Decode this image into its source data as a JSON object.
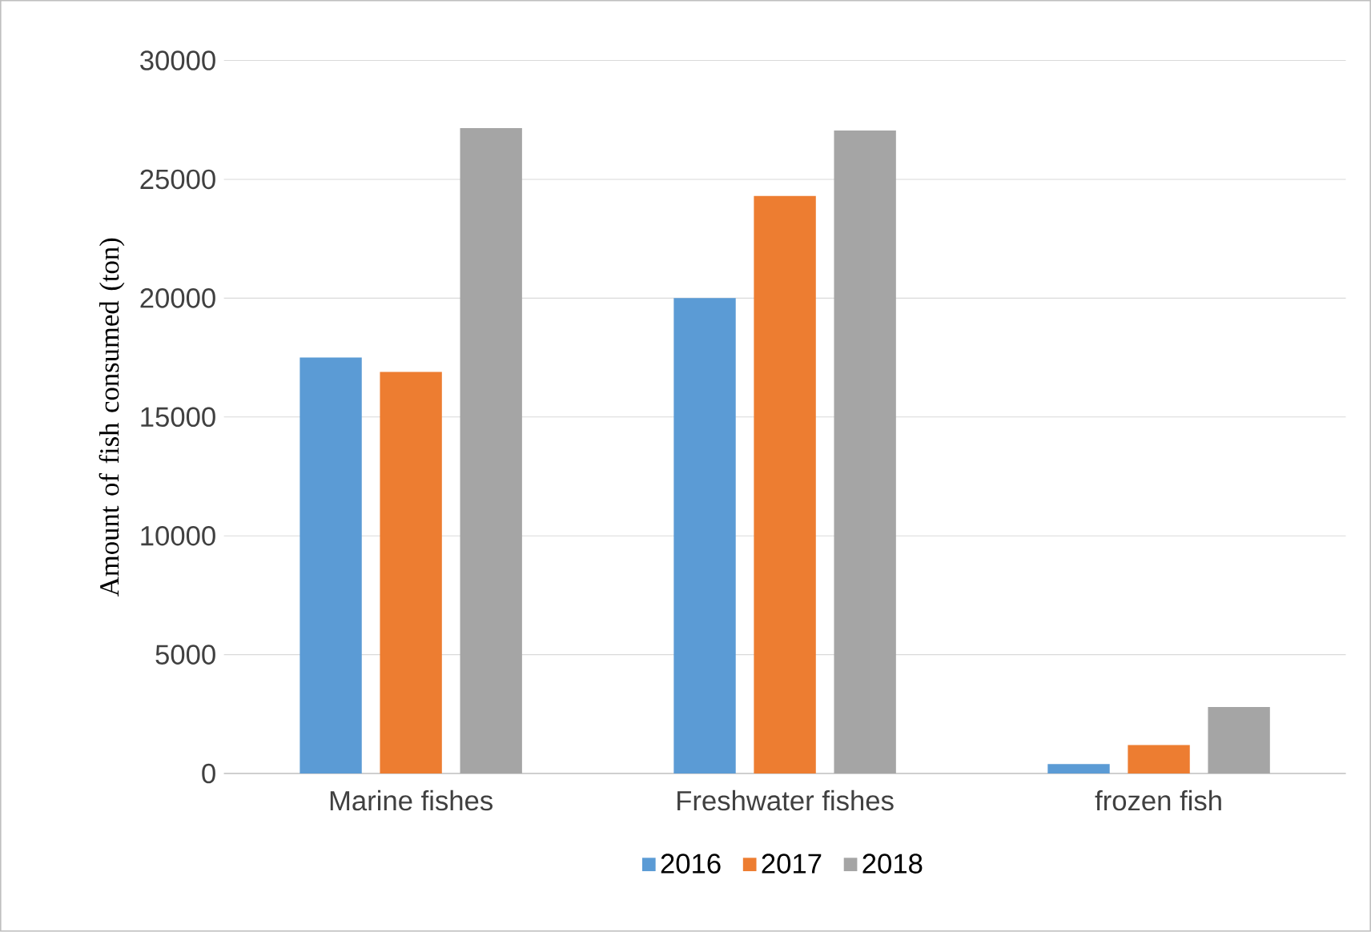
{
  "chart_data": {
    "type": "bar",
    "ylabel": "Amount of fish consumed (ton)",
    "categories": [
      "Marine fishes",
      "Freshwater fishes",
      "frozen fish"
    ],
    "series": [
      {
        "name": "2016",
        "color": "#5b9bd5",
        "values": [
          17500,
          20000,
          400
        ]
      },
      {
        "name": "2017",
        "color": "#ed7d31",
        "values": [
          16900,
          24300,
          1200
        ]
      },
      {
        "name": "2018",
        "color": "#a5a5a5",
        "values": [
          27150,
          27050,
          2800
        ]
      }
    ],
    "ylim": [
      0,
      30000
    ],
    "yticks": [
      0,
      5000,
      10000,
      15000,
      20000,
      25000,
      30000
    ],
    "grid": "y",
    "legend": "bottom"
  }
}
